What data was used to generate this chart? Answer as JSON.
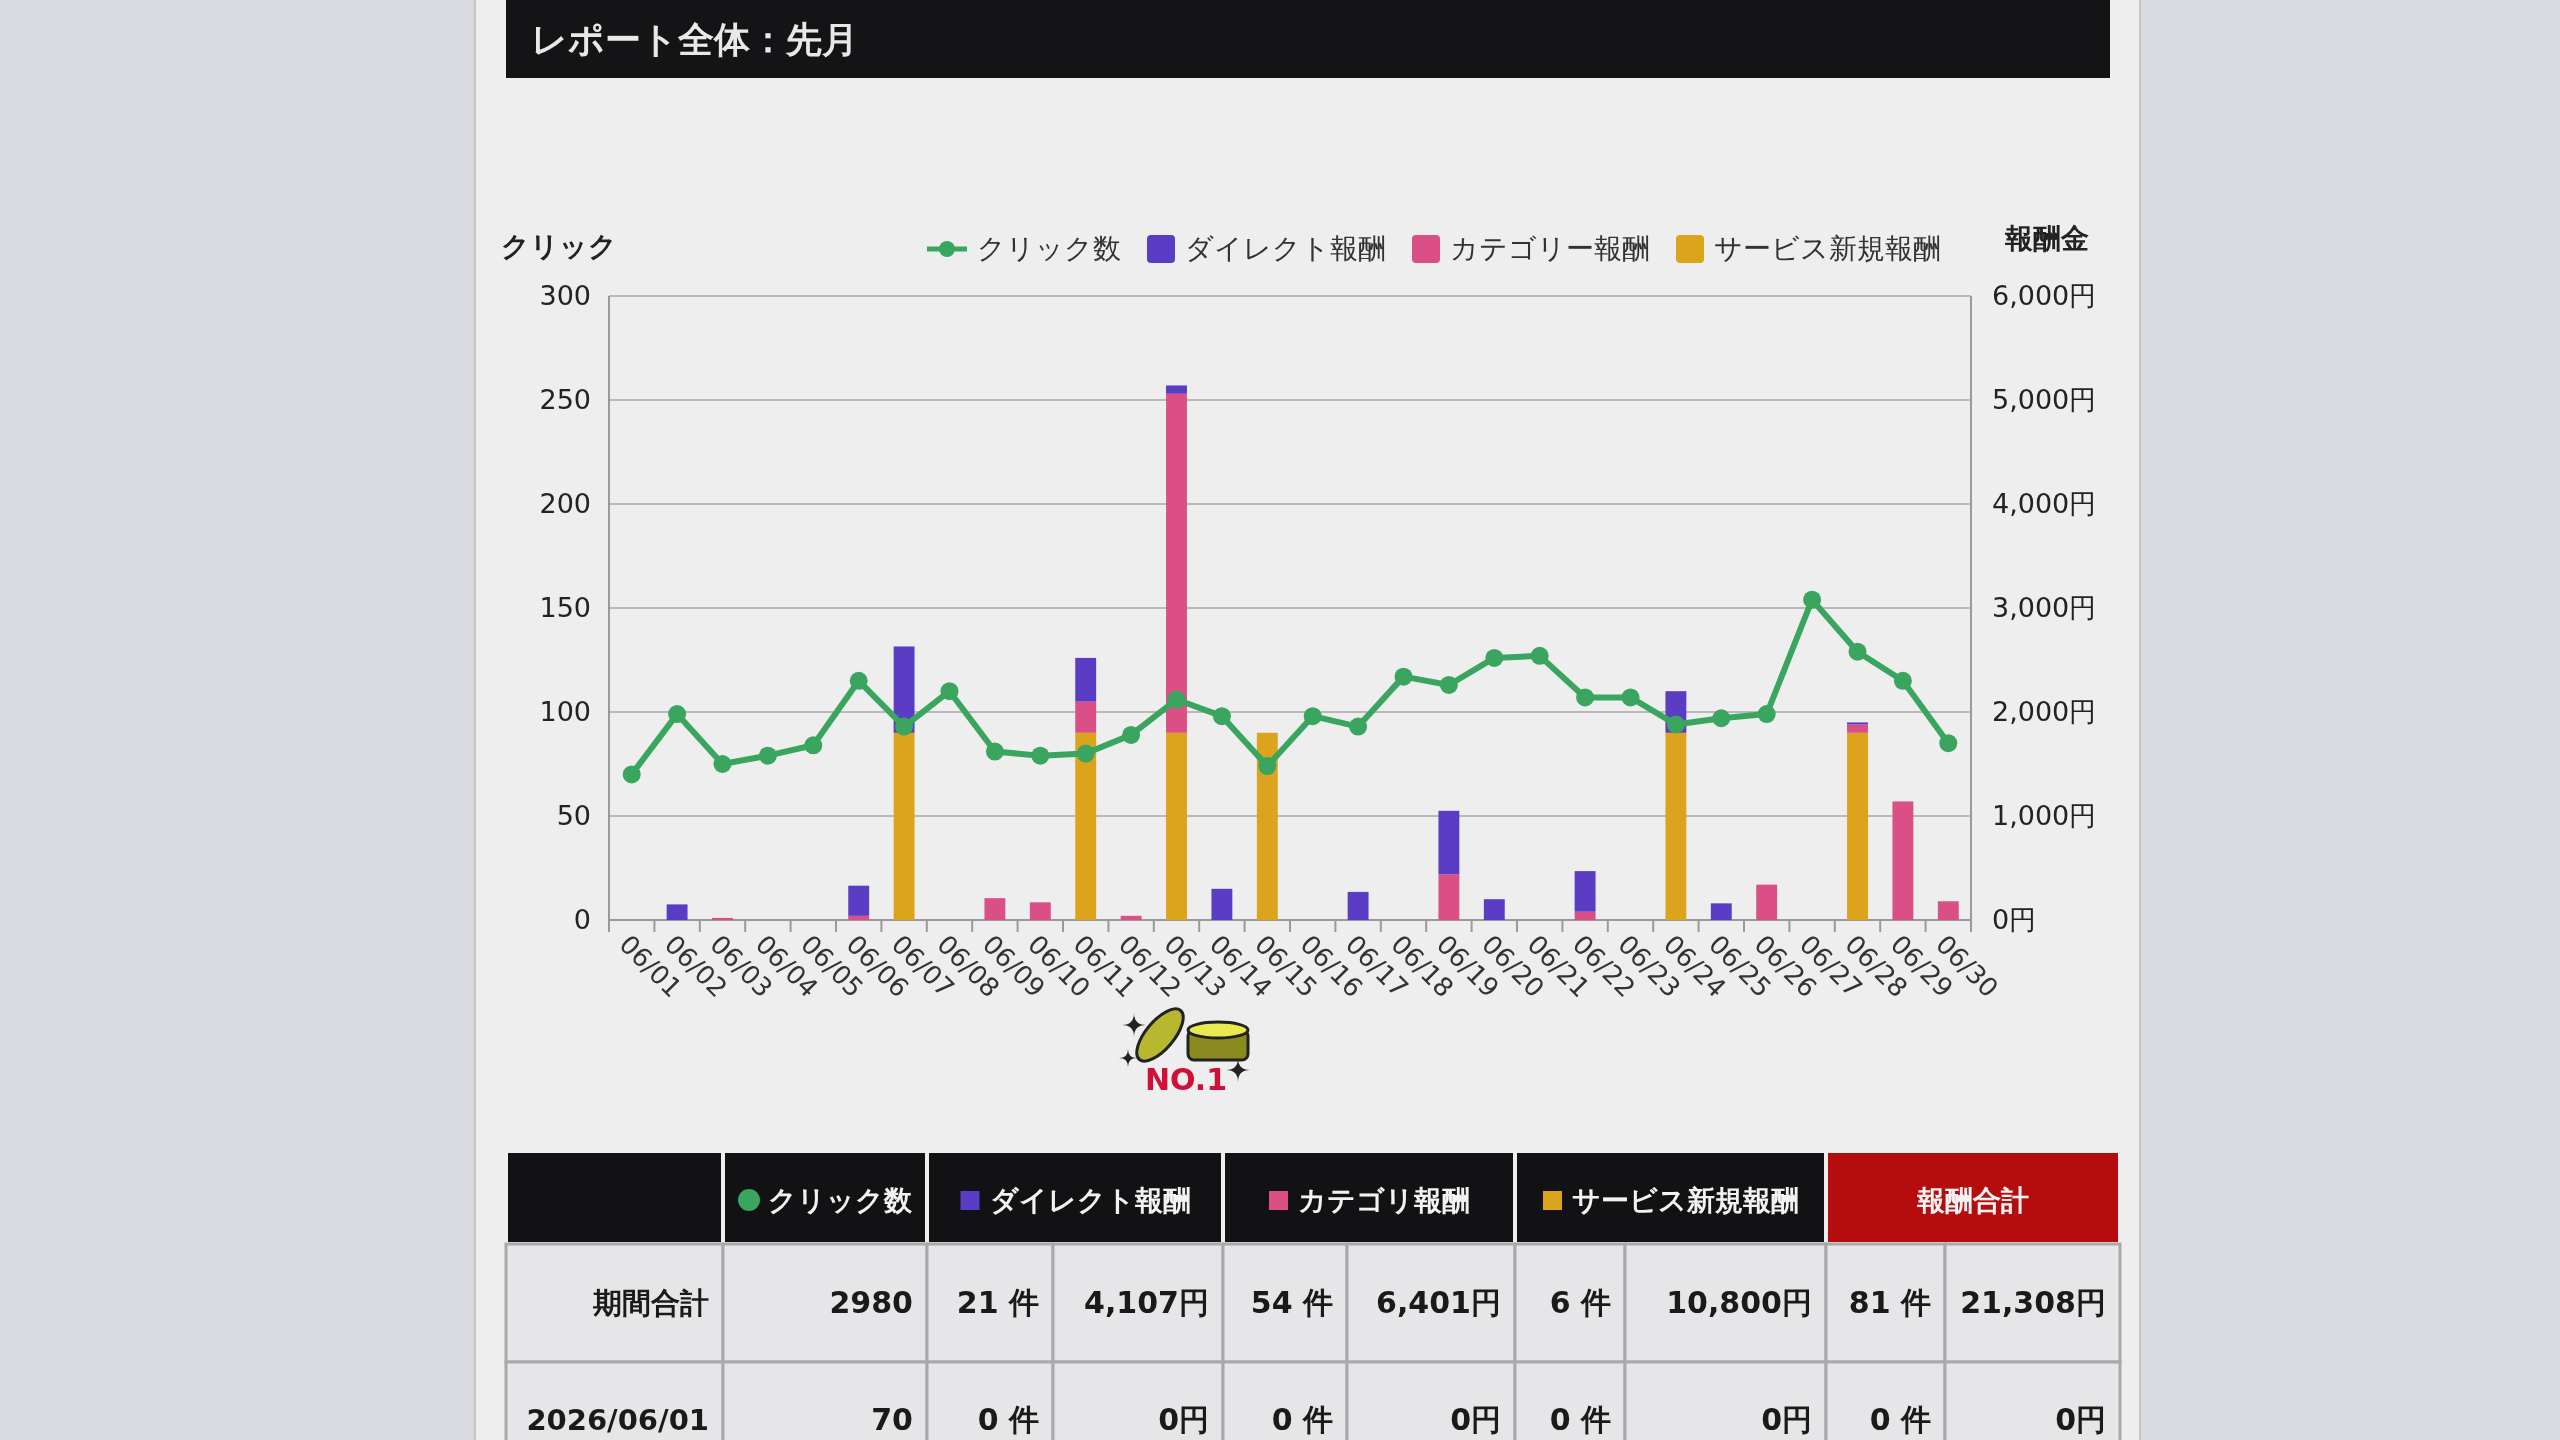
{
  "chart_data": [
    {
      "type": "bar",
      "title": "レポート全体：先月",
      "ylabel": "クリック",
      "y2label": "報酬金",
      "categories": [
        "06/01",
        "06/02",
        "06/03",
        "06/04",
        "06/05",
        "06/06",
        "06/07",
        "06/08",
        "06/09",
        "06/10",
        "06/11",
        "06/12",
        "06/13",
        "06/14",
        "06/15",
        "06/16",
        "06/17",
        "06/18",
        "06/19",
        "06/20",
        "06/21",
        "06/22",
        "06/23",
        "06/24",
        "06/25",
        "06/26",
        "06/27",
        "06/28",
        "06/29",
        "06/30"
      ],
      "series": [
        {
          "name": "クリック数",
          "type": "line",
          "color": "#3aa55e",
          "values": [
            70,
            99,
            75,
            79,
            84,
            115,
            93,
            110,
            81,
            79,
            80,
            89,
            106,
            98,
            74,
            98,
            93,
            117,
            113,
            126,
            127,
            107,
            107,
            94,
            97,
            99,
            154,
            129,
            115,
            85
          ]
        },
        {
          "name": "サービス新規報酬",
          "color": "#dca31c",
          "axis": "y2",
          "values": [
            0,
            0,
            0,
            0,
            0,
            0,
            1800,
            0,
            0,
            0,
            1800,
            0,
            1800,
            0,
            1800,
            0,
            0,
            0,
            0,
            0,
            0,
            0,
            0,
            1800,
            0,
            0,
            0,
            1800,
            0,
            0
          ]
        },
        {
          "name": "カテゴリー報酬",
          "color": "#d94f86",
          "axis": "y2",
          "values": [
            0,
            0,
            20,
            0,
            0,
            40,
            0,
            0,
            210,
            170,
            300,
            40,
            3260,
            0,
            0,
            0,
            0,
            0,
            440,
            0,
            0,
            80,
            0,
            0,
            0,
            340,
            0,
            80,
            1140,
            180
          ]
        },
        {
          "name": "ダイレクト報酬",
          "color": "#5b3cc4",
          "axis": "y2",
          "values": [
            0,
            150,
            0,
            0,
            0,
            290,
            830,
            0,
            0,
            0,
            420,
            0,
            80,
            300,
            0,
            0,
            270,
            0,
            610,
            200,
            0,
            390,
            0,
            400,
            160,
            0,
            0,
            20,
            0,
            0
          ]
        }
      ],
      "stacked": true,
      "marker": "circle",
      "grid": "y",
      "legend": "top right",
      "ylim": [
        0,
        300
      ],
      "yticks": [
        0,
        50,
        100,
        150,
        200,
        250,
        300
      ],
      "y2lim": [
        0,
        6000
      ],
      "y2ticks": [
        {
          "value": 0,
          "label": "0円"
        },
        {
          "value": 1000,
          "label": "1,000円"
        },
        {
          "value": 2000,
          "label": "2,000円"
        },
        {
          "value": 3000,
          "label": "3,000円"
        },
        {
          "value": 4000,
          "label": "4,000円"
        },
        {
          "value": 5000,
          "label": "5,000円"
        },
        {
          "value": 6000,
          "label": "6,000円"
        }
      ],
      "annotations": [
        "NO.1"
      ]
    },
    {
      "type": "other",
      "categories": [
        null,
        "クリック数",
        "ダイレクト報酬",
        "カテゴリ報酬",
        "サービス新規報酬",
        "報酬合計"
      ],
      "colors": [
        null,
        "#3aa55e",
        "#5b3cc4",
        "#d94f86",
        "#dca31c",
        null
      ],
      "y_categories": [
        "期間合計",
        "2026/06/01"
      ],
      "cell_labels": [
        [
          "2980",
          "21 件",
          "4,107円",
          "54 件",
          "6,401円",
          "6 件",
          "10,800円",
          "81 件",
          "21,308円"
        ],
        [
          "70",
          "0 件",
          "0円",
          "0 件",
          "0円",
          "0 件",
          "0円",
          "0 件",
          "0円"
        ]
      ]
    }
  ]
}
